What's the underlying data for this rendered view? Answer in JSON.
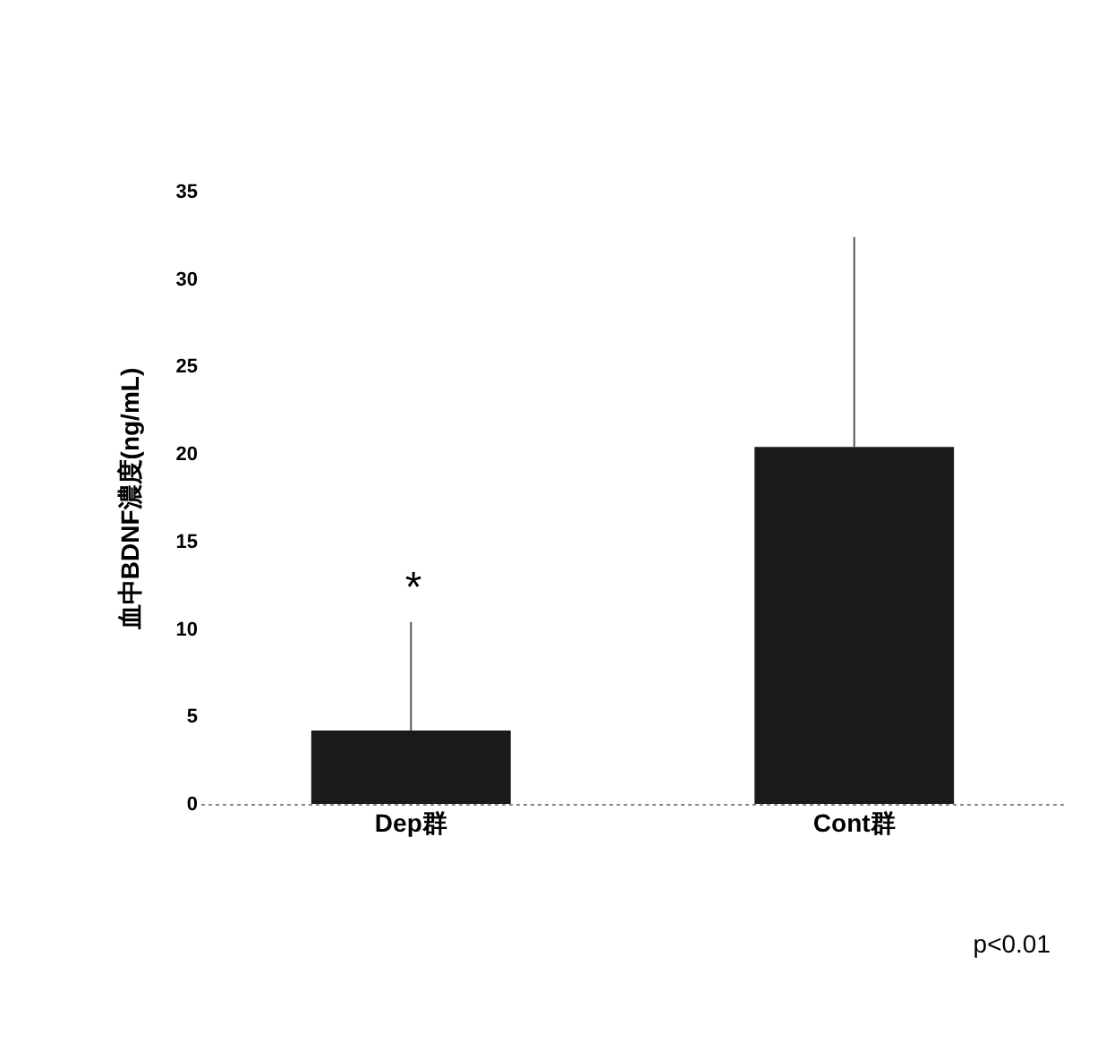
{
  "chart_data": {
    "type": "bar",
    "ylabel": "血中BDNF濃度(ng/mL)",
    "categories": [
      "Dep群",
      "Cont群"
    ],
    "values": [
      4.2,
      20.4
    ],
    "errors": [
      [
        4.2,
        10.4
      ],
      [
        20.4,
        32.4
      ]
    ],
    "color": "#1a1a1a",
    "ylim": [
      0,
      35
    ],
    "yticks": [
      0,
      5,
      10,
      15,
      20,
      25,
      30,
      35
    ],
    "annotations": [
      "*",
      "p<0.01"
    ]
  }
}
